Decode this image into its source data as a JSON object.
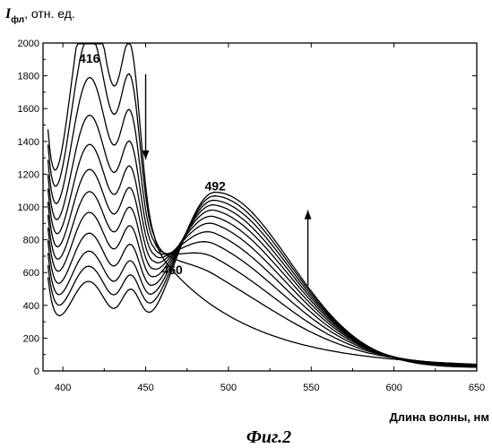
{
  "chart_data": {
    "type": "line",
    "title": "",
    "ylabel": {
      "symbol": "I",
      "subscript": "фл",
      "rest": ", отн. ед."
    },
    "xlabel": "Длина волны, нм",
    "caption": "Фиг.2",
    "xlim": [
      388,
      650
    ],
    "ylim": [
      0,
      2000
    ],
    "x_ticks": [
      400,
      450,
      500,
      550,
      600,
      650
    ],
    "y_ticks": [
      0,
      200,
      400,
      600,
      800,
      1000,
      1200,
      1400,
      1600,
      1800,
      2000
    ],
    "grid": false,
    "legend": "none",
    "annotations": [
      {
        "text": "416",
        "x": 416,
        "y": 1880
      },
      {
        "text": "492",
        "x": 492,
        "y": 1100
      },
      {
        "text": "460",
        "x": 466,
        "y": 590
      }
    ],
    "arrows": [
      {
        "direction": "down",
        "x": 450,
        "y_from": 1810,
        "y_to": 1290
      },
      {
        "direction": "up",
        "x": 548,
        "y_from": 520,
        "y_to": 980
      }
    ],
    "curve_params": {
      "description": "family of 12 spectra, peak 416 decreasing, peak 492 increasing, isosbestic point ~460",
      "peak416_heights": [
        1800,
        1580,
        1340,
        1140,
        1000,
        890,
        800,
        720,
        640,
        580,
        540,
        500
      ],
      "peak492_heights": [
        720,
        860,
        940,
        990,
        1020,
        1040,
        1050,
        1058,
        1062,
        1065,
        1068,
        1070
      ]
    }
  }
}
